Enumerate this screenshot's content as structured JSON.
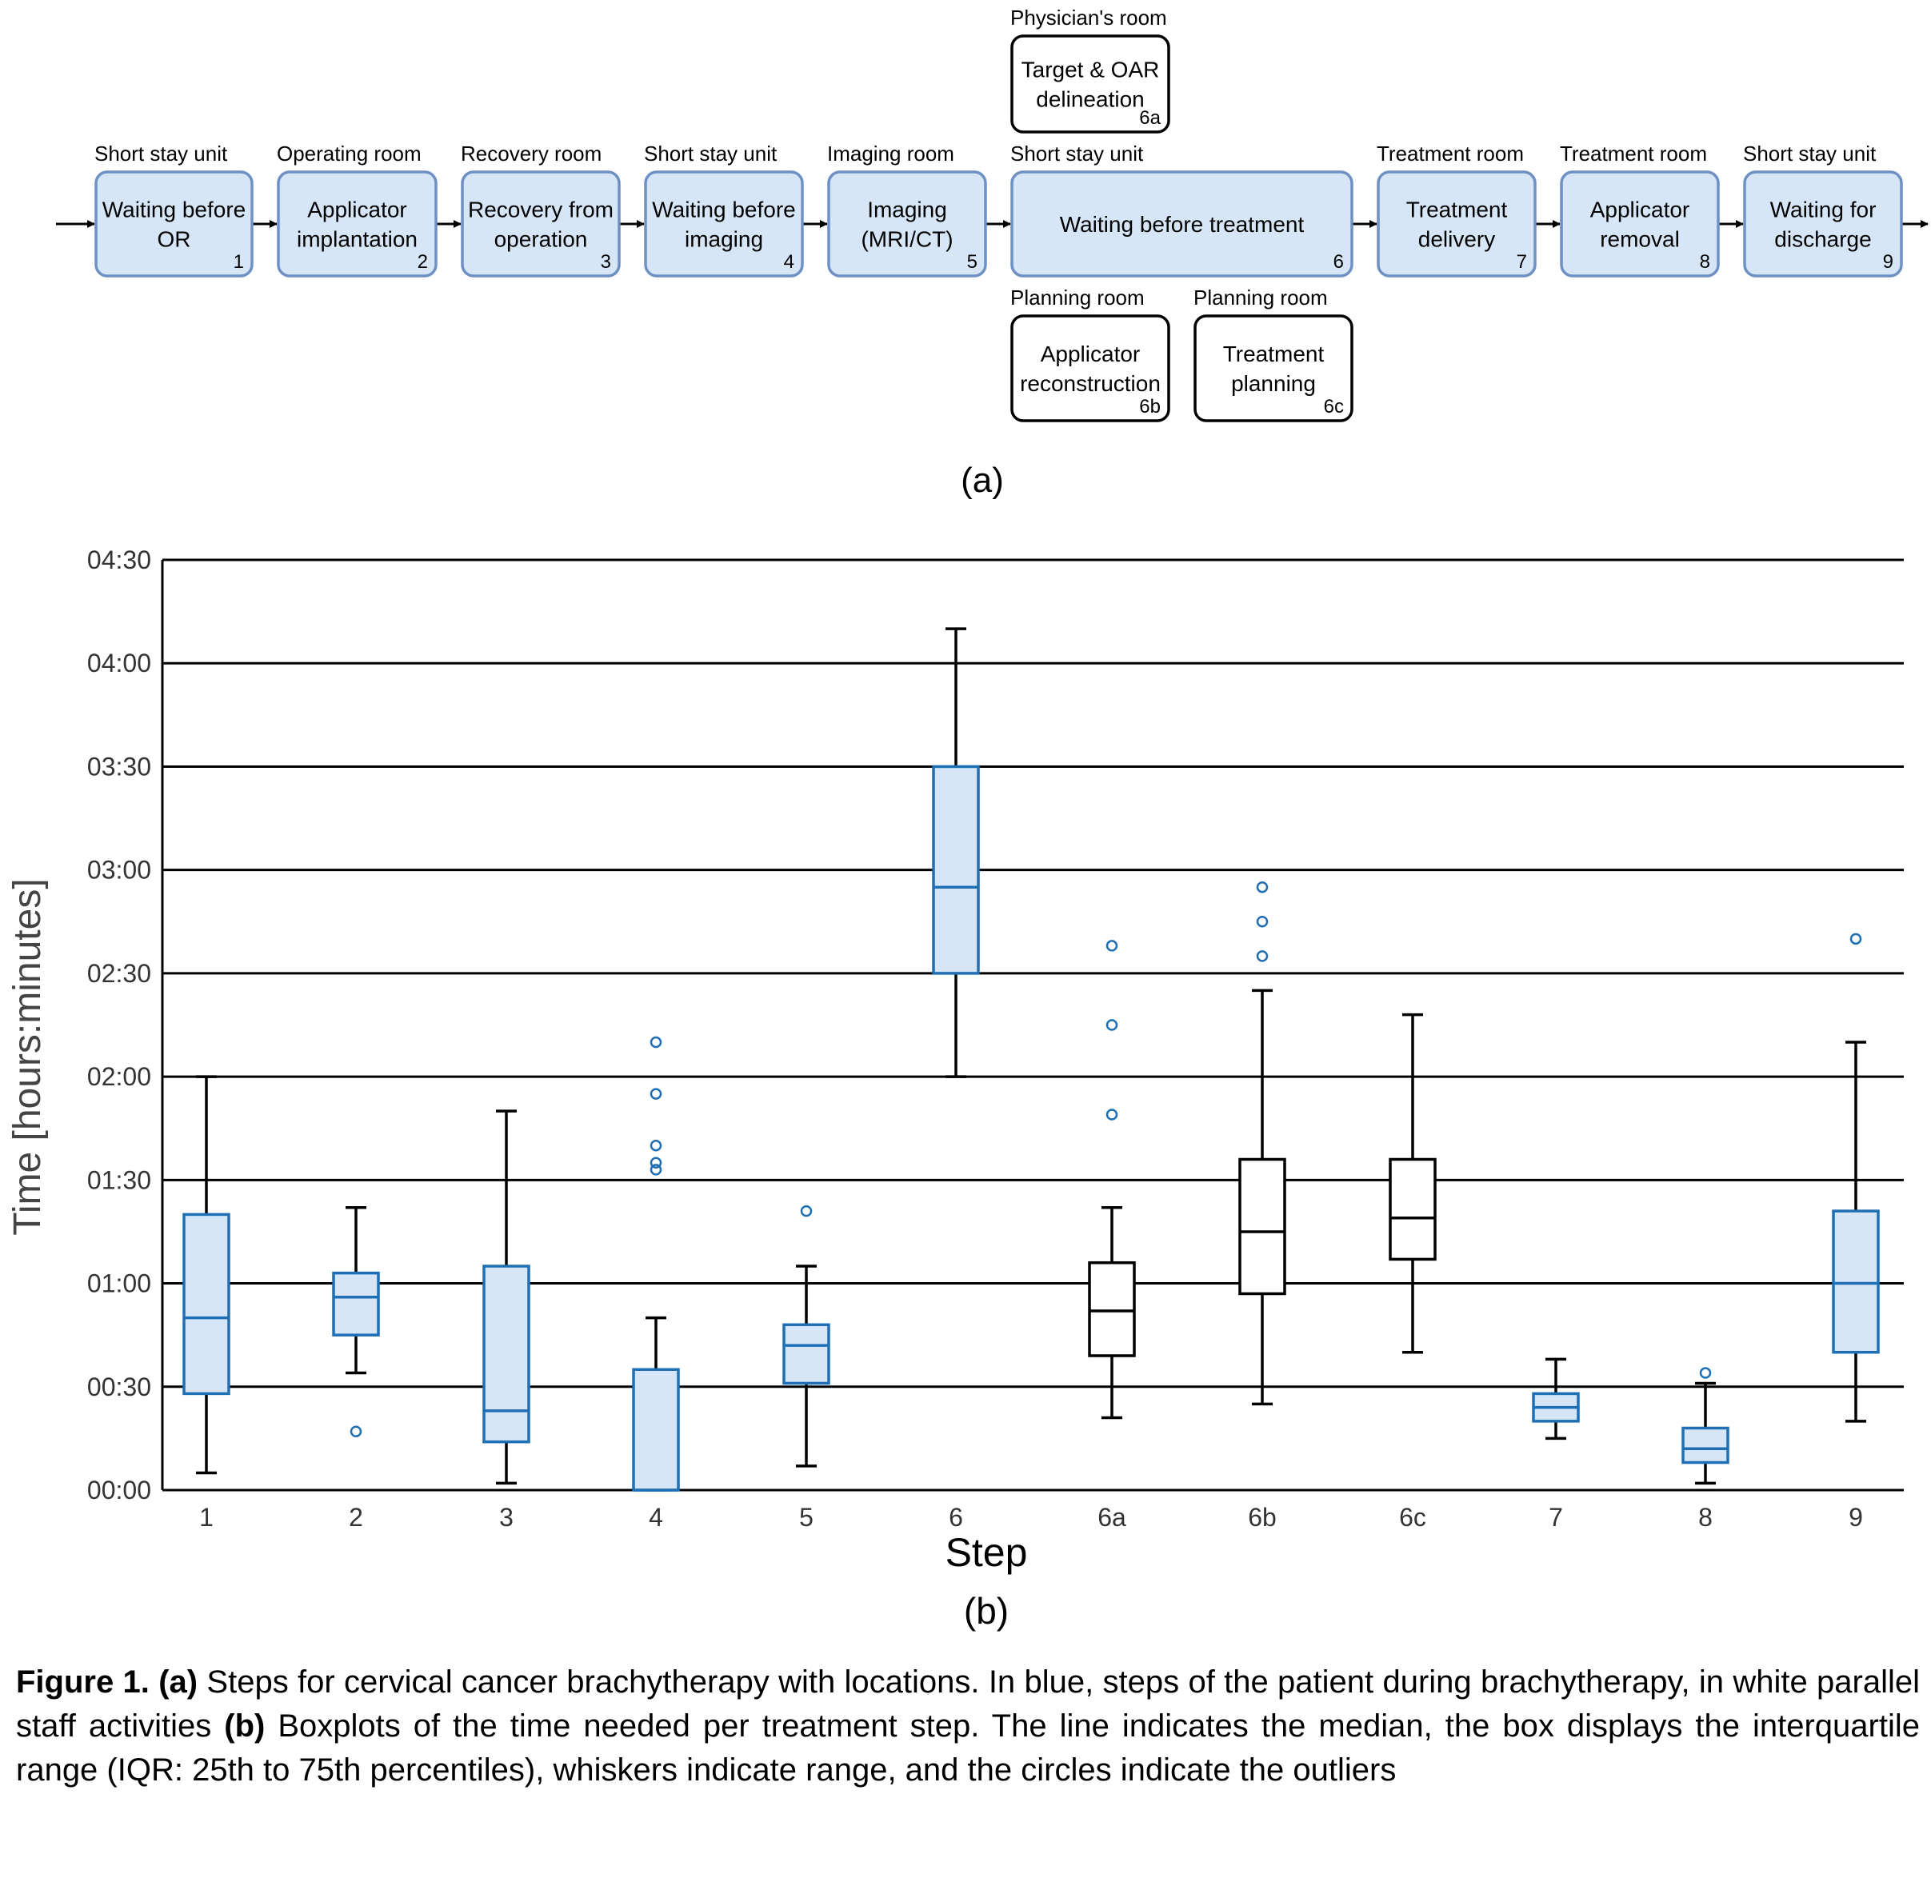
{
  "flow": {
    "steps": [
      {
        "id": "1",
        "location": "Short stay unit",
        "label": [
          "Waiting before",
          "OR"
        ],
        "patient": true
      },
      {
        "id": "2",
        "location": "Operating room",
        "label": [
          "Applicator",
          "implantation"
        ],
        "patient": true
      },
      {
        "id": "3",
        "location": "Recovery room",
        "label": [
          "Recovery from",
          "operation"
        ],
        "patient": true
      },
      {
        "id": "4",
        "location": "Short stay unit",
        "label": [
          "Waiting before",
          "imaging"
        ],
        "patient": true
      },
      {
        "id": "5",
        "location": "Imaging room",
        "label": [
          "Imaging",
          "(MRI/CT)"
        ],
        "patient": true
      },
      {
        "id": "6",
        "location": "Short stay unit",
        "label": [
          "Waiting before treatment"
        ],
        "patient": true
      },
      {
        "id": "7",
        "location": "Treatment room",
        "label": [
          "Treatment",
          "delivery"
        ],
        "patient": true
      },
      {
        "id": "8",
        "location": "Treatment room",
        "label": [
          "Applicator",
          "removal"
        ],
        "patient": true
      },
      {
        "id": "9",
        "location": "Short stay unit",
        "label": [
          "Waiting for",
          "discharge"
        ],
        "patient": true
      }
    ],
    "staff_steps": [
      {
        "id": "6a",
        "location": "Physician's room",
        "label": [
          "Target & OAR",
          "delineation"
        ],
        "patient": false
      },
      {
        "id": "6b",
        "location": "Planning room",
        "label": [
          "Applicator",
          "reconstruction"
        ],
        "patient": false
      },
      {
        "id": "6c",
        "location": "Planning room",
        "label": [
          "Treatment",
          "planning"
        ],
        "patient": false
      }
    ],
    "panel_label": "(a)"
  },
  "chart_data": {
    "type": "boxplot",
    "ylabel": "Time [hours:minutes]",
    "xlabel": "Step",
    "panel_label": "(b)",
    "ylim_minutes": [
      0,
      270
    ],
    "ytick_labels": [
      "00:00",
      "00:30",
      "01:00",
      "01:30",
      "02:00",
      "02:30",
      "03:00",
      "03:30",
      "04:00",
      "04:30"
    ],
    "grid": "horizontal",
    "colors": {
      "patient": "#1f6fb5",
      "patient_fill": "#d6e6f7",
      "staff": "#000000",
      "staff_fill": "#ffffff",
      "flow_fill": "#d6e6f7",
      "flow_stroke": "#6f90c4"
    },
    "boxes": [
      {
        "step": "1",
        "patient": true,
        "whisker_low": 5,
        "q1": 28,
        "median": 50,
        "q3": 80,
        "whisker_high": 120,
        "outliers": []
      },
      {
        "step": "2",
        "patient": true,
        "whisker_low": 34,
        "q1": 45,
        "median": 56,
        "q3": 63,
        "whisker_high": 82,
        "outliers": [
          17
        ]
      },
      {
        "step": "3",
        "patient": true,
        "whisker_low": 2,
        "q1": 14,
        "median": 23,
        "q3": 65,
        "whisker_high": 110,
        "outliers": []
      },
      {
        "step": "4",
        "patient": true,
        "whisker_low": 0,
        "q1": 0,
        "median": 0,
        "q3": 35,
        "whisker_high": 50,
        "outliers": [
          93,
          95,
          100,
          115,
          130
        ]
      },
      {
        "step": "5",
        "patient": true,
        "whisker_low": 7,
        "q1": 31,
        "median": 42,
        "q3": 48,
        "whisker_high": 65,
        "outliers": [
          81
        ]
      },
      {
        "step": "6",
        "patient": true,
        "whisker_low": 120,
        "q1": 150,
        "median": 175,
        "q3": 210,
        "whisker_high": 250,
        "outliers": []
      },
      {
        "step": "6a",
        "patient": false,
        "whisker_low": 21,
        "q1": 39,
        "median": 52,
        "q3": 66,
        "whisker_high": 82,
        "outliers": [
          109,
          135,
          158
        ]
      },
      {
        "step": "6b",
        "patient": false,
        "whisker_low": 25,
        "q1": 57,
        "median": 75,
        "q3": 96,
        "whisker_high": 145,
        "outliers": [
          155,
          165,
          175
        ]
      },
      {
        "step": "6c",
        "patient": false,
        "whisker_low": 40,
        "q1": 67,
        "median": 79,
        "q3": 96,
        "whisker_high": 138,
        "outliers": []
      },
      {
        "step": "7",
        "patient": true,
        "whisker_low": 15,
        "q1": 20,
        "median": 24,
        "q3": 28,
        "whisker_high": 38,
        "outliers": []
      },
      {
        "step": "8",
        "patient": true,
        "whisker_low": 2,
        "q1": 8,
        "median": 12,
        "q3": 18,
        "whisker_high": 31,
        "outliers": [
          34
        ]
      },
      {
        "step": "9",
        "patient": true,
        "whisker_low": 20,
        "q1": 40,
        "median": 60,
        "q3": 81,
        "whisker_high": 130,
        "outliers": [
          160
        ]
      }
    ]
  },
  "caption": {
    "fig_label": "Figure 1.",
    "a_label": "(a)",
    "a_text": " Steps for cervical cancer brachytherapy with locations. In blue, steps of the patient during brachytherapy, in white parallel staff activities ",
    "b_label": "(b)",
    "b_text": " Boxplots of the time needed per treatment step. The line indicates the median, the box displays the interquartile range (IQR: 25th to 75th percentiles), whiskers indicate range, and the circles indicate the outliers"
  }
}
